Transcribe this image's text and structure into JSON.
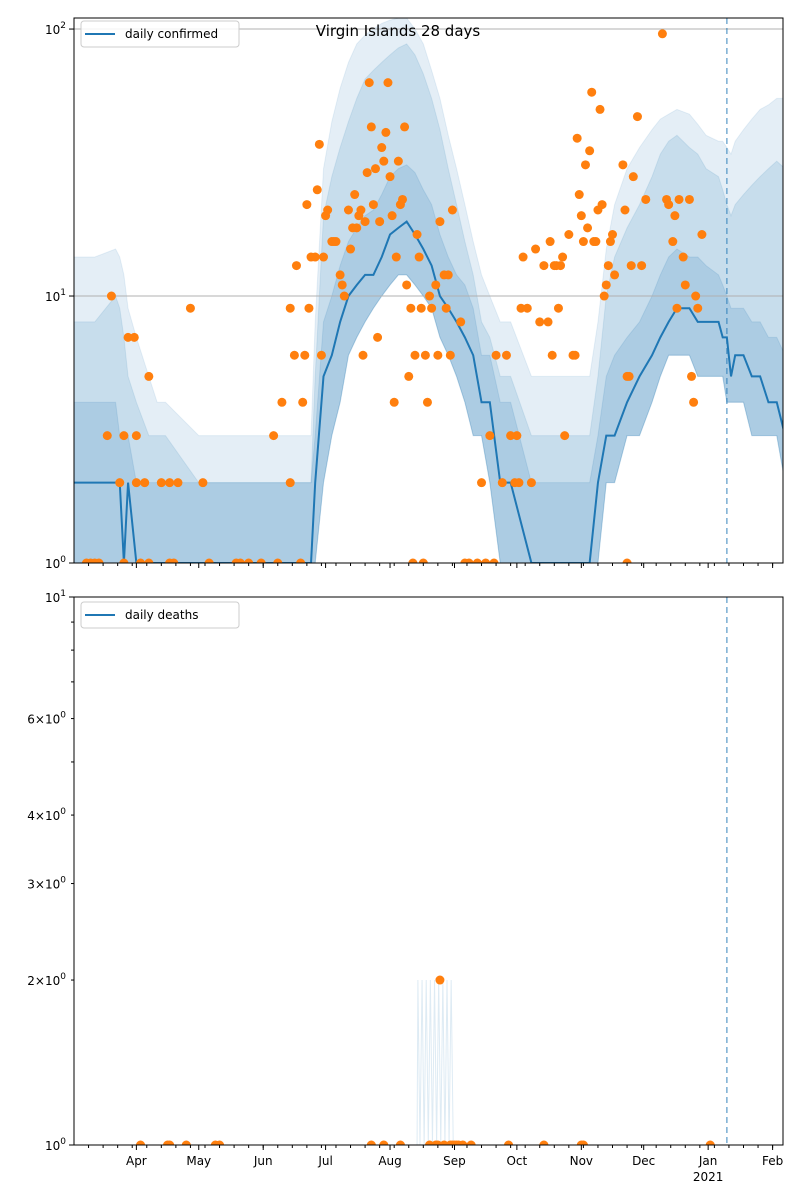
{
  "colors": {
    "line": "#1f77b4",
    "dots": "#ff7f0e",
    "band": "#1f77b4",
    "grid": "#b0b0b0",
    "vline": "#1f77b4"
  },
  "chart_data": [
    {
      "type": "line",
      "title": "Virgin Islands 28 days",
      "scale": "log",
      "ylim": [
        1,
        110
      ],
      "grid": true,
      "legend_position": "top-left",
      "legend_label": "daily confirmed",
      "y_ticks": [
        {
          "value": 1,
          "label": "10^0"
        },
        {
          "value": 10,
          "label": "10^1"
        },
        {
          "value": 100,
          "label": "10^2"
        }
      ],
      "vline_day": 314,
      "x": [
        0,
        10,
        20,
        22,
        24,
        26,
        30,
        36,
        40,
        44,
        60,
        64,
        78,
        84,
        92,
        96,
        100,
        104,
        110,
        114,
        116,
        120,
        124,
        128,
        132,
        136,
        140,
        144,
        148,
        152,
        156,
        160,
        164,
        168,
        172,
        176,
        180,
        184,
        188,
        192,
        196,
        200,
        205,
        210,
        220,
        230,
        240,
        248,
        252,
        256,
        260,
        266,
        272,
        278,
        282,
        286,
        290,
        296,
        300,
        304,
        310,
        312,
        314,
        316,
        318,
        322,
        326,
        330,
        334,
        338,
        342
      ],
      "line": [
        2,
        2,
        2,
        2,
        1,
        2,
        1,
        1,
        1,
        1,
        1,
        1,
        1,
        1,
        1,
        1,
        1,
        1,
        1,
        1,
        2,
        5,
        6,
        8,
        10,
        11,
        12,
        12,
        14,
        17,
        18,
        19,
        17,
        15,
        13,
        10,
        9,
        8,
        7,
        6,
        4,
        4,
        2,
        2,
        1,
        1,
        1,
        1,
        2,
        3,
        3,
        4,
        5,
        6,
        7,
        8,
        9,
        9,
        8,
        8,
        8,
        7,
        7,
        5,
        6,
        6,
        5,
        5,
        4,
        4,
        3
      ],
      "p25": [
        1,
        1,
        1,
        1,
        1,
        1,
        1,
        1,
        1,
        1,
        1,
        1,
        1,
        1,
        1,
        1,
        1,
        1,
        1,
        1,
        1,
        2,
        3,
        4,
        6,
        7,
        8,
        9,
        10,
        11,
        12,
        12,
        11,
        10,
        9,
        7,
        6,
        5,
        4,
        3,
        3,
        2,
        1,
        1,
        1,
        1,
        1,
        1,
        1,
        2,
        2,
        3,
        3,
        4,
        5,
        6,
        6,
        6,
        5,
        5,
        5,
        5,
        4,
        4,
        4,
        4,
        3,
        3,
        3,
        3,
        2
      ],
      "p75": [
        4,
        4,
        4,
        3,
        3,
        3,
        2,
        2,
        2,
        2,
        2,
        2,
        2,
        2,
        2,
        2,
        2,
        2,
        2,
        2,
        3,
        8,
        10,
        13,
        16,
        18,
        20,
        21,
        24,
        28,
        30,
        31,
        29,
        25,
        22,
        17,
        14,
        12,
        11,
        9,
        6,
        6,
        4,
        4,
        2,
        2,
        2,
        2,
        3,
        5,
        6,
        7,
        8,
        10,
        12,
        14,
        15,
        14,
        14,
        13,
        12,
        11,
        10,
        9,
        9,
        9,
        8,
        8,
        7,
        7,
        6
      ],
      "p95": [
        8,
        8,
        10,
        9,
        7,
        5,
        4,
        3,
        3,
        3,
        2,
        2,
        2,
        2,
        2,
        2,
        2,
        2,
        2,
        2,
        5,
        20,
        28,
        36,
        45,
        55,
        65,
        70,
        75,
        80,
        85,
        88,
        80,
        68,
        55,
        42,
        30,
        22,
        16,
        12,
        8,
        7,
        5,
        5,
        3,
        3,
        3,
        3,
        5,
        10,
        14,
        18,
        22,
        28,
        34,
        38,
        40,
        36,
        34,
        30,
        28,
        25,
        22,
        20,
        22,
        24,
        26,
        28,
        30,
        32,
        30
      ],
      "p_hi": [
        14,
        14,
        15,
        14,
        12,
        9,
        7,
        5,
        4,
        4,
        3,
        3,
        3,
        3,
        3,
        3,
        3,
        3,
        3,
        3,
        8,
        30,
        45,
        60,
        75,
        88,
        95,
        100,
        105,
        108,
        110,
        110,
        100,
        88,
        70,
        55,
        40,
        30,
        22,
        16,
        12,
        10,
        8,
        8,
        5,
        5,
        5,
        5,
        8,
        15,
        22,
        30,
        36,
        42,
        46,
        48,
        50,
        48,
        44,
        40,
        38,
        38,
        36,
        34,
        38,
        42,
        46,
        50,
        52,
        55,
        55
      ],
      "points": [
        [
          6,
          1
        ],
        [
          8,
          1
        ],
        [
          10,
          1
        ],
        [
          12,
          1
        ],
        [
          16,
          3
        ],
        [
          18,
          10
        ],
        [
          22,
          2
        ],
        [
          24,
          3
        ],
        [
          24,
          1
        ],
        [
          26,
          7
        ],
        [
          29,
          7
        ],
        [
          30,
          3
        ],
        [
          30,
          2
        ],
        [
          32,
          1
        ],
        [
          34,
          2
        ],
        [
          36,
          5
        ],
        [
          36,
          1
        ],
        [
          42,
          2
        ],
        [
          46,
          1
        ],
        [
          46,
          2
        ],
        [
          48,
          1
        ],
        [
          50,
          2
        ],
        [
          56,
          9
        ],
        [
          62,
          2
        ],
        [
          65,
          1
        ],
        [
          78,
          1
        ],
        [
          80,
          1
        ],
        [
          84,
          1
        ],
        [
          90,
          1
        ],
        [
          96,
          3
        ],
        [
          98,
          1
        ],
        [
          100,
          4
        ],
        [
          104,
          9
        ],
        [
          104,
          2
        ],
        [
          106,
          6
        ],
        [
          107,
          13
        ],
        [
          109,
          1
        ],
        [
          110,
          4
        ],
        [
          111,
          6
        ],
        [
          112,
          22
        ],
        [
          113,
          9
        ],
        [
          114,
          14
        ],
        [
          116,
          14
        ],
        [
          117,
          25
        ],
        [
          118,
          37
        ],
        [
          119,
          6
        ],
        [
          120,
          14
        ],
        [
          121,
          20
        ],
        [
          122,
          21
        ],
        [
          124,
          16
        ],
        [
          125,
          16
        ],
        [
          126,
          16
        ],
        [
          128,
          12
        ],
        [
          129,
          11
        ],
        [
          130,
          10
        ],
        [
          132,
          21
        ],
        [
          133,
          15
        ],
        [
          134,
          18
        ],
        [
          135,
          24
        ],
        [
          136,
          18
        ],
        [
          137,
          20
        ],
        [
          138,
          21
        ],
        [
          139,
          6
        ],
        [
          140,
          19
        ],
        [
          141,
          29
        ],
        [
          142,
          63
        ],
        [
          143,
          43
        ],
        [
          144,
          22
        ],
        [
          145,
          30
        ],
        [
          146,
          7
        ],
        [
          147,
          19
        ],
        [
          148,
          36
        ],
        [
          149,
          32
        ],
        [
          150,
          41
        ],
        [
          151,
          63
        ],
        [
          152,
          28
        ],
        [
          153,
          20
        ],
        [
          154,
          4
        ],
        [
          155,
          14
        ],
        [
          156,
          32
        ],
        [
          157,
          22
        ],
        [
          158,
          23
        ],
        [
          159,
          43
        ],
        [
          160,
          11
        ],
        [
          161,
          5
        ],
        [
          162,
          9
        ],
        [
          163,
          1
        ],
        [
          164,
          6
        ],
        [
          165,
          17
        ],
        [
          166,
          14
        ],
        [
          167,
          9
        ],
        [
          168,
          1
        ],
        [
          169,
          6
        ],
        [
          170,
          4
        ],
        [
          171,
          10
        ],
        [
          172,
          9
        ],
        [
          174,
          11
        ],
        [
          175,
          6
        ],
        [
          176,
          19
        ],
        [
          178,
          12
        ],
        [
          179,
          9
        ],
        [
          180,
          12
        ],
        [
          181,
          6
        ],
        [
          182,
          21
        ],
        [
          186,
          8
        ],
        [
          188,
          1
        ],
        [
          190,
          1
        ],
        [
          194,
          1
        ],
        [
          196,
          2
        ],
        [
          198,
          1
        ],
        [
          200,
          3
        ],
        [
          202,
          1
        ],
        [
          203,
          6
        ],
        [
          206,
          2
        ],
        [
          208,
          6
        ],
        [
          210,
          3
        ],
        [
          212,
          2
        ],
        [
          213,
          3
        ],
        [
          214,
          2
        ],
        [
          215,
          9
        ],
        [
          216,
          14
        ],
        [
          218,
          9
        ],
        [
          220,
          2
        ],
        [
          222,
          15
        ],
        [
          224,
          8
        ],
        [
          226,
          13
        ],
        [
          228,
          8
        ],
        [
          229,
          16
        ],
        [
          230,
          6
        ],
        [
          231,
          13
        ],
        [
          232,
          13
        ],
        [
          233,
          9
        ],
        [
          234,
          13
        ],
        [
          235,
          14
        ],
        [
          236,
          3
        ],
        [
          238,
          17
        ],
        [
          240,
          6
        ],
        [
          241,
          6
        ],
        [
          242,
          39
        ],
        [
          243,
          24
        ],
        [
          244,
          20
        ],
        [
          245,
          16
        ],
        [
          246,
          31
        ],
        [
          247,
          18
        ],
        [
          248,
          35
        ],
        [
          249,
          58
        ],
        [
          250,
          16
        ],
        [
          251,
          16
        ],
        [
          252,
          21
        ],
        [
          253,
          50
        ],
        [
          254,
          22
        ],
        [
          255,
          10
        ],
        [
          256,
          11
        ],
        [
          257,
          13
        ],
        [
          258,
          16
        ],
        [
          259,
          17
        ],
        [
          260,
          12
        ],
        [
          264,
          31
        ],
        [
          265,
          21
        ],
        [
          266,
          5
        ],
        [
          267,
          5
        ],
        [
          268,
          13
        ],
        [
          269,
          28
        ],
        [
          271,
          47
        ],
        [
          273,
          13
        ],
        [
          275,
          23
        ],
        [
          283,
          96
        ],
        [
          285,
          23
        ],
        [
          286,
          22
        ],
        [
          288,
          16
        ],
        [
          289,
          20
        ],
        [
          290,
          9
        ],
        [
          291,
          23
        ],
        [
          293,
          14
        ],
        [
          294,
          11
        ],
        [
          296,
          23
        ],
        [
          297,
          5
        ],
        [
          298,
          4
        ],
        [
          299,
          10
        ],
        [
          300,
          9
        ],
        [
          302,
          17
        ],
        [
          266,
          1
        ]
      ]
    },
    {
      "type": "line",
      "scale": "log",
      "ylim": [
        1,
        10
      ],
      "legend_position": "top-left",
      "legend_label": "daily deaths",
      "y_ticks": [
        {
          "value": 1,
          "label": "10^0",
          "major": true
        },
        {
          "value": 2,
          "label": "2×10^0"
        },
        {
          "value": 3,
          "label": "3×10^0"
        },
        {
          "value": 4,
          "label": "4×10^0"
        },
        {
          "value": 6,
          "label": "6×10^0"
        },
        {
          "value": 10,
          "label": "10^1",
          "major": true
        }
      ],
      "vline_day": 314,
      "spikes": [
        166,
        168,
        170,
        172,
        174,
        176,
        178,
        180,
        182
      ],
      "points": [
        [
          32,
          1
        ],
        [
          45,
          1
        ],
        [
          46,
          1
        ],
        [
          54,
          1
        ],
        [
          68,
          1
        ],
        [
          70,
          1
        ],
        [
          143,
          1
        ],
        [
          149,
          1
        ],
        [
          157,
          1
        ],
        [
          171,
          1
        ],
        [
          174,
          1
        ],
        [
          175,
          1
        ],
        [
          176,
          2
        ],
        [
          178,
          1
        ],
        [
          181,
          1
        ],
        [
          182,
          1
        ],
        [
          183,
          1
        ],
        [
          184,
          1
        ],
        [
          185,
          1
        ],
        [
          187,
          1
        ],
        [
          191,
          1
        ],
        [
          209,
          1
        ],
        [
          226,
          1
        ],
        [
          244,
          1
        ],
        [
          245,
          1
        ],
        [
          306,
          1
        ]
      ],
      "x_ticks": [
        {
          "day": 30,
          "label": "Apr"
        },
        {
          "day": 60,
          "label": "May"
        },
        {
          "day": 91,
          "label": "Jun"
        },
        {
          "day": 121,
          "label": "Jul"
        },
        {
          "day": 152,
          "label": "Aug"
        },
        {
          "day": 183,
          "label": "Sep"
        },
        {
          "day": 213,
          "label": "Oct"
        },
        {
          "day": 244,
          "label": "Nov"
        },
        {
          "day": 274,
          "label": "Dec"
        },
        {
          "day": 305,
          "label": "Jan",
          "sublabel": "2021"
        },
        {
          "day": 336,
          "label": "Feb"
        }
      ]
    }
  ],
  "x_domain": [
    0,
    341
  ]
}
